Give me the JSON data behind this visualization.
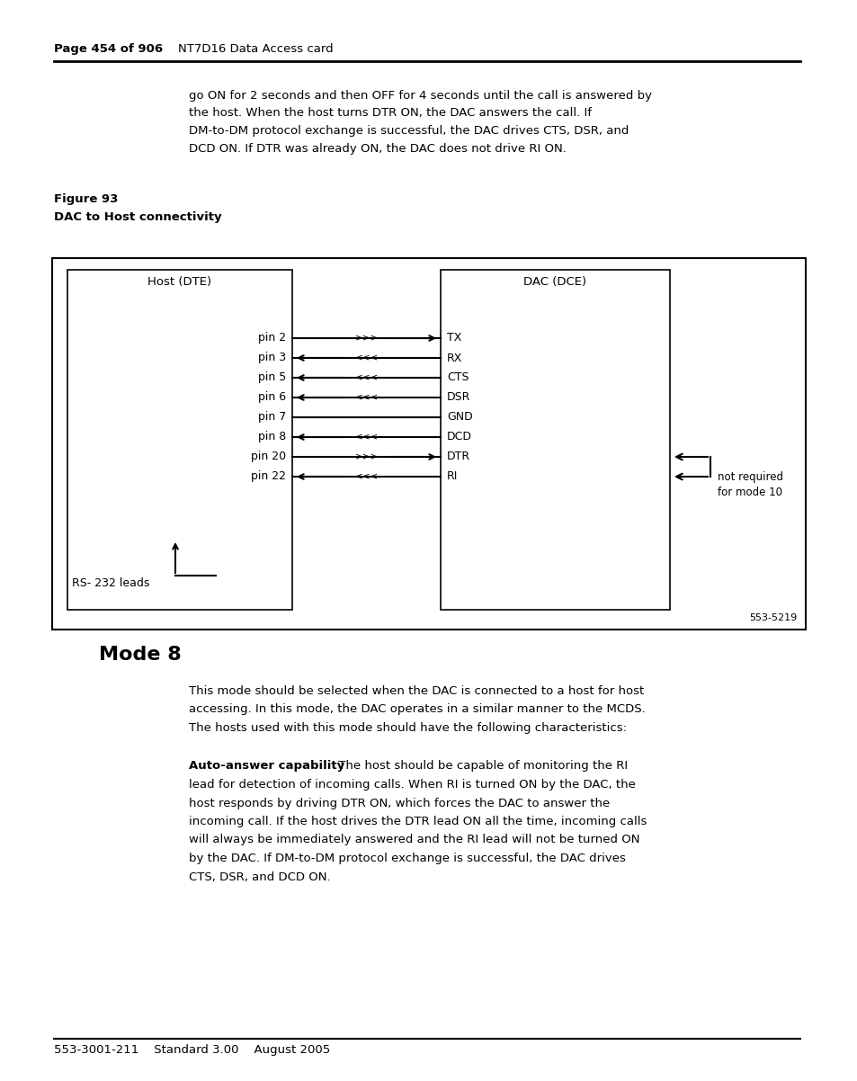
{
  "page_header_bold": "Page 454 of 906",
  "page_header_normal": "NT7D16 Data Access card",
  "intro_lines": [
    "go ON for 2 seconds and then OFF for 4 seconds until the call is answered by",
    "the host. When the host turns DTR ON, the DAC answers the call. If",
    "DM-to-DM protocol exchange is successful, the DAC drives CTS, DSR, and",
    "DCD ON. If DTR was already ON, the DAC does not drive RI ON."
  ],
  "figure_label": "Figure 93",
  "figure_caption": "DAC to Host connectivity",
  "diagram_ref": "553-5219",
  "host_box_label": "Host (DTE)",
  "dac_box_label": "DAC (DCE)",
  "pins": [
    "pin 2",
    "pin 3",
    "pin 5",
    "pin 6",
    "pin 7",
    "pin 8",
    "pin 20",
    "pin 22"
  ],
  "signals": [
    "TX",
    "RX",
    "CTS",
    "DSR",
    "GND",
    "DCD",
    "DTR",
    "RI"
  ],
  "directions": [
    "right",
    "left",
    "left",
    "left",
    "none",
    "left",
    "right",
    "left"
  ],
  "rs232_label": "RS- 232 leads",
  "not_required_line1": "not required",
  "not_required_line2": "for mode 10",
  "section_title": "Mode 8",
  "para1_lines": [
    "This mode should be selected when the DAC is connected to a host for host",
    "accessing. In this mode, the DAC operates in a similar manner to the MCDS.",
    "The hosts used with this mode should have the following characteristics:"
  ],
  "body_text_bold": "Auto-answer capability",
  "para2_lines": [
    " The host should be capable of monitoring the RI",
    "lead for detection of incoming calls. When RI is turned ON by the DAC, the",
    "host responds by driving DTR ON, which forces the DAC to answer the",
    "incoming call. If the host drives the DTR lead ON all the time, incoming calls",
    "will always be immediately answered and the RI lead will not be turned ON",
    "by the DAC. If DM-to-DM protocol exchange is successful, the DAC drives",
    "CTS, DSR, and DCD ON."
  ],
  "footer_text": "553-3001-211    Standard 3.00    August 2005",
  "bg_color": "#ffffff",
  "text_color": "#000000"
}
